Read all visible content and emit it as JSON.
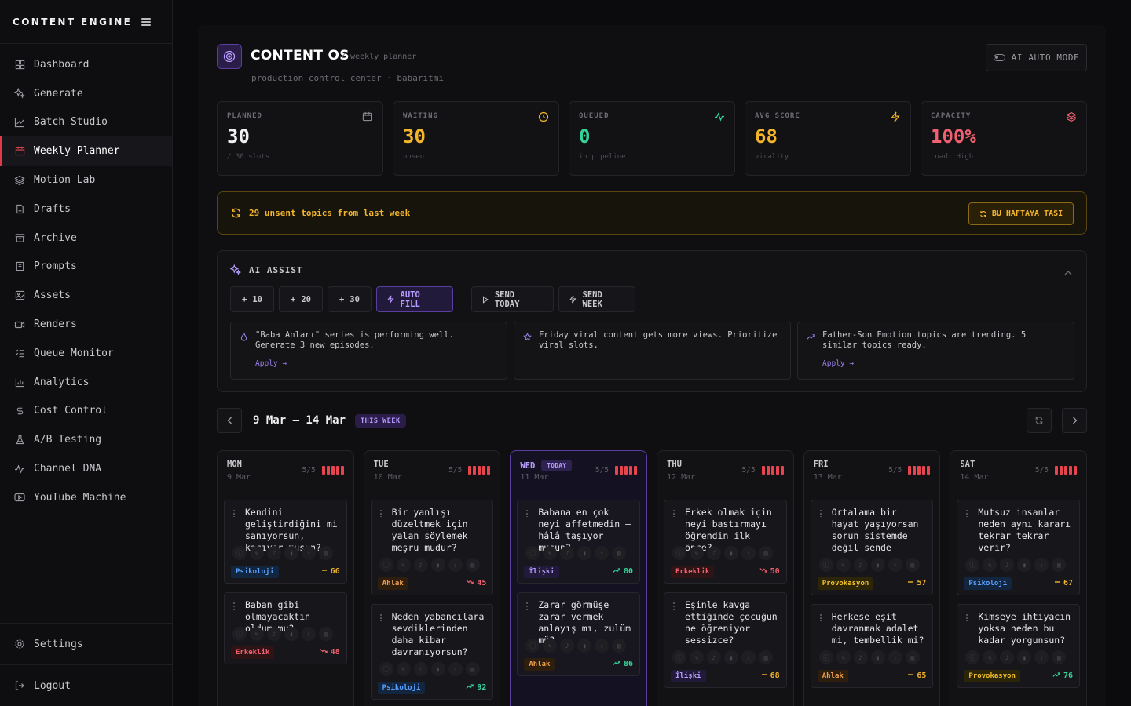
{
  "brand": "CONTENT ENGINE",
  "nav": [
    {
      "label": "Dashboard",
      "icon": "dashboard-icon"
    },
    {
      "label": "Generate",
      "icon": "sparkle-icon"
    },
    {
      "label": "Batch Studio",
      "icon": "chart-line-icon"
    },
    {
      "label": "Weekly Planner",
      "icon": "calendar-icon",
      "active": true
    },
    {
      "label": "Motion Lab",
      "icon": "layers-icon"
    },
    {
      "label": "Drafts",
      "icon": "document-icon"
    },
    {
      "label": "Archive",
      "icon": "archive-icon"
    },
    {
      "label": "Prompts",
      "icon": "book-icon"
    },
    {
      "label": "Assets",
      "icon": "image-icon"
    },
    {
      "label": "Renders",
      "icon": "video-icon"
    },
    {
      "label": "Queue Monitor",
      "icon": "list-check-icon"
    },
    {
      "label": "Analytics",
      "icon": "bar-chart-icon"
    },
    {
      "label": "Cost Control",
      "icon": "dollar-icon"
    },
    {
      "label": "A/B Testing",
      "icon": "flask-icon"
    },
    {
      "label": "Channel DNA",
      "icon": "activity-icon"
    },
    {
      "label": "YouTube Machine",
      "icon": "youtube-icon"
    }
  ],
  "footer": {
    "settings": "Settings",
    "logout": "Logout"
  },
  "header": {
    "title": "CONTENT OS",
    "subtitle": "/ weekly planner",
    "subline": "production control center · babaritmi",
    "ai_auto_mode": "AI AUTO MODE"
  },
  "stats": [
    {
      "label": "PLANNED",
      "value": "30",
      "sub": "/ 30 slots",
      "color": "#f0f0f2",
      "icon": "calendar-icon"
    },
    {
      "label": "WAITING",
      "value": "30",
      "sub": "unsent",
      "color": "#f3b52a",
      "icon": "clock-icon"
    },
    {
      "label": "QUEUED",
      "value": "0",
      "sub": "in pipeline",
      "color": "#34d39a",
      "icon": "activity-icon"
    },
    {
      "label": "AVG SCORE",
      "value": "68",
      "sub": "virality",
      "color": "#f3b52a",
      "icon": "bolt-icon"
    },
    {
      "label": "CAPACITY",
      "value": "100%",
      "sub": "Load: High",
      "color": "#f06070",
      "icon": "layers-icon"
    }
  ],
  "banner": {
    "text": "29 unsent topics from last week",
    "button": "BU HAFTAYA TAŞI"
  },
  "assist": {
    "title": "AI ASSIST",
    "buttons": {
      "b10": "10",
      "b20": "20",
      "b30": "30",
      "auto_fill": "AUTO FILL",
      "send_today": "SEND TODAY",
      "send_week": "SEND WEEK"
    },
    "cards": [
      {
        "text": "\"Baba Anları\" series is performing well. Generate 3 new episodes.",
        "apply": "Apply →",
        "icon": "flame-icon"
      },
      {
        "text": "Friday viral content gets more views. Prioritize viral slots.",
        "apply": "",
        "icon": "star-icon"
      },
      {
        "text": "Father-Son Emotion topics are trending. 5 similar topics ready.",
        "apply": "Apply →",
        "icon": "trending-up-icon"
      }
    ]
  },
  "week": {
    "range": "9 Mar – 14 Mar",
    "badge": "THIS WEEK"
  },
  "days": [
    {
      "name": "MON",
      "date": "9 Mar",
      "count": "5/5",
      "today": false,
      "cards": [
        {
          "title": "Kendini geliştirdiğini mi sanıyorsun, kaçıyor musun?",
          "tag": "Psikoloji",
          "tagClass": "psi",
          "score": "66",
          "trend": "flat"
        },
        {
          "title": "Baban gibi olmayacaktın — oldum mu?",
          "tag": "Erkeklik",
          "tagClass": "erk",
          "score": "48",
          "trend": "down"
        }
      ]
    },
    {
      "name": "TUE",
      "date": "10 Mar",
      "count": "5/5",
      "today": false,
      "cards": [
        {
          "title": "Bir yanlışı düzeltmek için yalan söylemek meşru mudur?",
          "tag": "Ahlak",
          "tagClass": "ahl",
          "score": "45",
          "trend": "down"
        },
        {
          "title": "Neden yabancılara sevdiklerinden daha kibar davranıyorsun?",
          "tag": "Psikoloji",
          "tagClass": "psi",
          "score": "92",
          "trend": "up"
        }
      ]
    },
    {
      "name": "WED",
      "date": "11 Mar",
      "count": "5/5",
      "today": true,
      "today_label": "TODAY",
      "cards": [
        {
          "title": "Babana en çok neyi affetmedin — hâlâ taşıyor musun?",
          "tag": "İlişki",
          "tagClass": "ili",
          "score": "80",
          "trend": "up"
        },
        {
          "title": "Zarar görmüşe zarar vermek — anlayış mı, zulüm mü?",
          "tag": "Ahlak",
          "tagClass": "ahl",
          "score": "86",
          "trend": "up"
        }
      ]
    },
    {
      "name": "THU",
      "date": "12 Mar",
      "count": "5/5",
      "today": false,
      "cards": [
        {
          "title": "Erkek olmak için neyi bastırmayı öğrendin ilk önce?",
          "tag": "Erkeklik",
          "tagClass": "erk",
          "score": "50",
          "trend": "down"
        },
        {
          "title": "Eşinle kavga ettiğinde çocuğun ne öğreniyor sessizce?",
          "tag": "İlişki",
          "tagClass": "ili",
          "score": "68",
          "trend": "flat"
        }
      ]
    },
    {
      "name": "FRI",
      "date": "13 Mar",
      "count": "5/5",
      "today": false,
      "cards": [
        {
          "title": "Ortalama bir hayat yaşıyorsan sorun sistemde değil sende",
          "tag": "Provokasyon",
          "tagClass": "pro",
          "score": "57",
          "trend": "flat"
        },
        {
          "title": "Herkese eşit davranmak adalet mi, tembellik mi?",
          "tag": "Ahlak",
          "tagClass": "ahl",
          "score": "65",
          "trend": "flat"
        }
      ]
    },
    {
      "name": "SAT",
      "date": "14 Mar",
      "count": "5/5",
      "today": false,
      "cards": [
        {
          "title": "Mutsuz insanlar neden aynı kararı tekrar tekrar verir?",
          "tag": "Psikoloji",
          "tagClass": "psi",
          "score": "67",
          "trend": "flat"
        },
        {
          "title": "Kimseye ihtiyacın yoksa neden bu kadar yorgunsun?",
          "tag": "Provokasyon",
          "tagClass": "pro",
          "score": "76",
          "trend": "up"
        }
      ]
    }
  ]
}
